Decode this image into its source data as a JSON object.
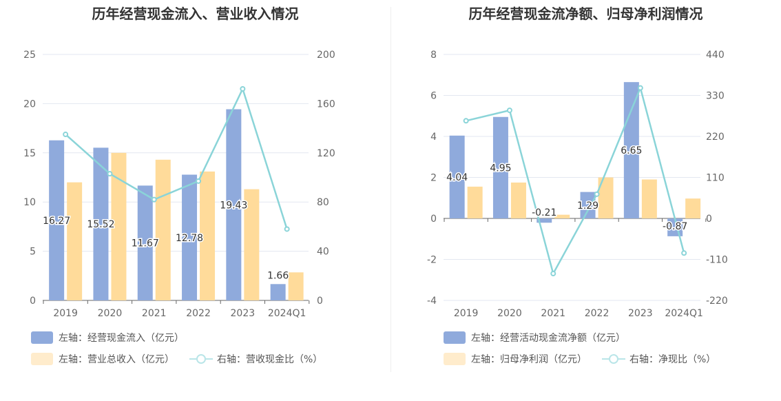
{
  "chart_data": [
    {
      "type": "bar",
      "title": "历年经营现金流入、营业收入情况",
      "categories": [
        "2019",
        "2020",
        "2021",
        "2022",
        "2023",
        "2024Q1"
      ],
      "left_axis": {
        "min": 0,
        "max": 25,
        "ticks": [
          "0",
          "5",
          "10",
          "15",
          "20",
          "25"
        ]
      },
      "right_axis": {
        "min": 0,
        "max": 200,
        "ticks": [
          "0",
          "40",
          "80",
          "120",
          "160",
          "200"
        ]
      },
      "series": [
        {
          "name": "左轴：经营现金流入（亿元）",
          "axis": "left",
          "kind": "bar",
          "values": [
            16.27,
            15.52,
            11.67,
            12.78,
            19.43,
            1.66
          ],
          "labels": [
            "16.27",
            "15.52",
            "11.67",
            "12.78",
            "19.43",
            "1.66"
          ]
        },
        {
          "name": "左轴：营业总收入（亿元）",
          "axis": "left",
          "kind": "bar",
          "values": [
            12.0,
            15.0,
            14.3,
            13.1,
            11.3,
            2.85
          ]
        },
        {
          "name": "右轴：营收现金比（%）",
          "axis": "right",
          "kind": "line",
          "values": [
            135,
            103,
            82,
            97,
            172,
            58
          ]
        }
      ],
      "colors": {
        "bar1": "#8faadc",
        "bar2": "#ffdb9a",
        "line": "#8ad4d8",
        "legend_bar2": "#ffeccc"
      },
      "grid": true
    },
    {
      "type": "bar",
      "title": "历年经营现金流净额、归母净利润情况",
      "categories": [
        "2019",
        "2020",
        "2021",
        "2022",
        "2023",
        "2024Q1"
      ],
      "left_axis": {
        "min": -4,
        "max": 8,
        "ticks": [
          "-4",
          "-2",
          "0",
          "2",
          "4",
          "6",
          "8"
        ]
      },
      "right_axis": {
        "min": -220,
        "max": 440,
        "ticks": [
          "-220",
          "-110",
          "0",
          "110",
          "220",
          "330",
          "440"
        ]
      },
      "series": [
        {
          "name": "左轴：经营活动现金流净额（亿元）",
          "axis": "left",
          "kind": "bar",
          "values": [
            4.04,
            4.95,
            -0.21,
            1.29,
            6.65,
            -0.87
          ],
          "labels": [
            "4.04",
            "4.95",
            "-0.21",
            "1.29",
            "6.65",
            "-0.87"
          ]
        },
        {
          "name": "左轴：归母净利润（亿元）",
          "axis": "left",
          "kind": "bar",
          "values": [
            1.55,
            1.75,
            0.18,
            2.0,
            1.9,
            0.97
          ]
        },
        {
          "name": "右轴：净现比（%）",
          "axis": "right",
          "kind": "line",
          "values": [
            262,
            290,
            -148,
            65,
            350,
            -93
          ]
        }
      ],
      "colors": {
        "bar1": "#8faadc",
        "bar2": "#ffdb9a",
        "line": "#8ad4d8",
        "legend_bar2": "#ffeccc"
      },
      "grid": true
    }
  ]
}
